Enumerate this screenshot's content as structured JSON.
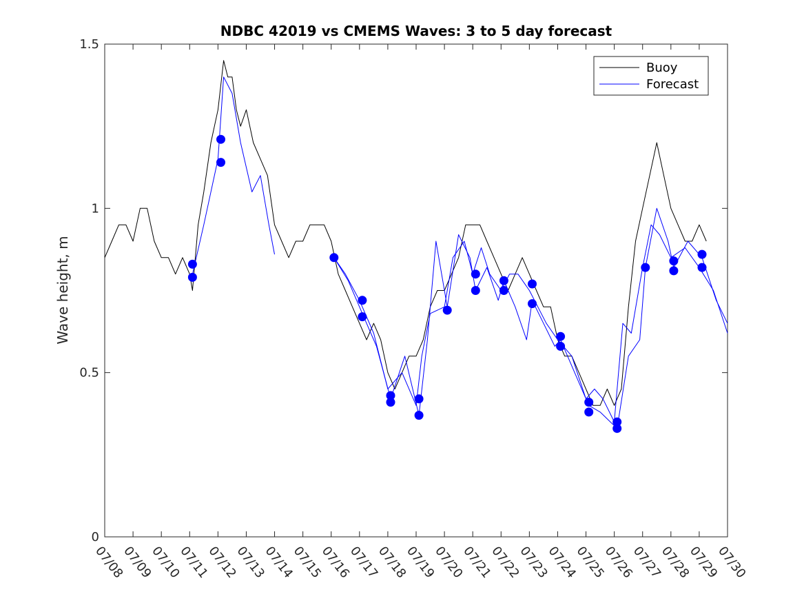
{
  "chart_data": {
    "type": "line",
    "title": "NDBC 42019 vs CMEMS Waves: 3 to 5 day forecast",
    "ylabel": "Wave height, m",
    "xlabel": "",
    "ylim": [
      0,
      1.5
    ],
    "yticks": [
      0,
      0.5,
      1,
      1.5
    ],
    "ytick_labels": [
      "0",
      "0.5",
      "1",
      "1.5"
    ],
    "xlim_day": [
      8,
      30
    ],
    "xticks_day": [
      8,
      9,
      10,
      11,
      12,
      13,
      14,
      15,
      16,
      17,
      18,
      19,
      20,
      21,
      22,
      23,
      24,
      25,
      26,
      27,
      28,
      29,
      30
    ],
    "xtick_labels": [
      "07/08",
      "07/09",
      "07/10",
      "07/11",
      "07/12",
      "07/13",
      "07/14",
      "07/15",
      "07/16",
      "07/17",
      "07/18",
      "07/19",
      "07/20",
      "07/21",
      "07/22",
      "07/23",
      "07/24",
      "07/25",
      "07/26",
      "07/27",
      "07/28",
      "07/29",
      "07/30"
    ],
    "legend": {
      "placement": "top-right",
      "entries": [
        "Buoy",
        "Forecast"
      ]
    },
    "colors": {
      "buoy": "#000000",
      "forecast": "#0000ff",
      "markers": "#0000ff"
    },
    "grid": false,
    "series": [
      {
        "name": "Buoy",
        "x": [
          8.0,
          8.25,
          8.5,
          8.75,
          9.0,
          9.25,
          9.5,
          9.75,
          10.0,
          10.25,
          10.5,
          10.75,
          11.0,
          11.1,
          11.2,
          11.3,
          11.5,
          11.75,
          12.0,
          12.2,
          12.35,
          12.5,
          12.65,
          12.8,
          13.0,
          13.25,
          13.5,
          13.75,
          14.0,
          14.25,
          14.5,
          14.75,
          15.0,
          15.25,
          15.5,
          15.75,
          16.0,
          16.25,
          16.5,
          16.75,
          17.0,
          17.25,
          17.5,
          17.75,
          18.0,
          18.25,
          18.5,
          18.75,
          19.0,
          19.25,
          19.5,
          19.75,
          20.0,
          20.25,
          20.5,
          20.75,
          21.0,
          21.25,
          21.5,
          21.75,
          22.0,
          22.25,
          22.5,
          22.75,
          23.0,
          23.25,
          23.5,
          23.75,
          24.0,
          24.25,
          24.5,
          24.75,
          25.0,
          25.25,
          25.5,
          25.75,
          26.0,
          26.25,
          26.5,
          26.75,
          27.0,
          27.25,
          27.5,
          27.75,
          28.0,
          28.25,
          28.5,
          28.75,
          29.0,
          29.25
        ],
        "values": [
          0.85,
          0.9,
          0.95,
          0.95,
          0.9,
          1.0,
          1.0,
          0.9,
          0.85,
          0.85,
          0.8,
          0.85,
          0.8,
          0.75,
          0.85,
          0.95,
          1.05,
          1.2,
          1.3,
          1.45,
          1.4,
          1.4,
          1.3,
          1.25,
          1.3,
          1.2,
          1.15,
          1.1,
          0.95,
          0.9,
          0.85,
          0.9,
          0.9,
          0.95,
          0.95,
          0.95,
          0.9,
          0.8,
          0.75,
          0.7,
          0.65,
          0.6,
          0.65,
          0.6,
          0.5,
          0.45,
          0.5,
          0.55,
          0.55,
          0.6,
          0.7,
          0.75,
          0.75,
          0.8,
          0.85,
          0.95,
          0.95,
          0.95,
          0.9,
          0.85,
          0.8,
          0.75,
          0.8,
          0.85,
          0.8,
          0.75,
          0.7,
          0.7,
          0.6,
          0.55,
          0.55,
          0.5,
          0.45,
          0.4,
          0.4,
          0.45,
          0.4,
          0.45,
          0.7,
          0.9,
          1.0,
          1.1,
          1.2,
          1.1,
          1.0,
          0.95,
          0.9,
          0.9,
          0.95,
          0.9
        ]
      },
      {
        "name": "Forecast",
        "x": [
          11.1,
          11.5,
          12.0,
          12.2,
          12.5,
          12.8,
          13.2,
          13.5,
          13.8,
          14.0
        ],
        "values": [
          0.8,
          0.95,
          1.15,
          1.4,
          1.35,
          1.2,
          1.05,
          1.1,
          0.95,
          0.86
        ]
      },
      {
        "name": "",
        "x": [
          16.1,
          16.5,
          17.0,
          17.5,
          18.0,
          18.5,
          19.0,
          19.2,
          19.5,
          20.0,
          20.3,
          20.7,
          21.0,
          21.3,
          21.6,
          22.0,
          22.3,
          22.6,
          23.0,
          23.3,
          23.6,
          24.0,
          24.5,
          25.0,
          25.3,
          25.6,
          26.0,
          26.3,
          26.6,
          27.0,
          27.3,
          27.6,
          28.0,
          28.5,
          29.0,
          29.5,
          30.0
        ],
        "values": [
          0.85,
          0.8,
          0.72,
          0.62,
          0.45,
          0.5,
          0.4,
          0.55,
          0.68,
          0.7,
          0.85,
          0.9,
          0.8,
          0.88,
          0.8,
          0.75,
          0.8,
          0.8,
          0.75,
          0.7,
          0.65,
          0.6,
          0.55,
          0.42,
          0.45,
          0.42,
          0.35,
          0.65,
          0.62,
          0.82,
          0.95,
          0.92,
          0.85,
          0.88,
          0.82,
          0.75,
          0.62
        ]
      },
      {
        "name": "",
        "x": [
          16.1,
          16.6,
          17.1,
          17.6,
          18.1,
          18.6,
          19.1,
          19.4,
          19.7,
          20.1,
          20.5,
          20.9,
          21.1,
          21.5,
          21.9,
          22.1,
          22.5,
          22.9,
          23.1,
          23.5,
          23.9,
          24.1,
          24.6,
          25.1,
          25.5,
          26.1,
          26.5,
          26.9,
          27.1,
          27.5,
          27.9,
          28.1,
          28.6,
          29.1,
          29.6,
          30.0
        ],
        "values": [
          0.85,
          0.78,
          0.68,
          0.58,
          0.42,
          0.55,
          0.37,
          0.6,
          0.9,
          0.7,
          0.92,
          0.85,
          0.75,
          0.82,
          0.72,
          0.78,
          0.7,
          0.6,
          0.72,
          0.65,
          0.58,
          0.6,
          0.5,
          0.4,
          0.38,
          0.33,
          0.55,
          0.6,
          0.82,
          1.0,
          0.9,
          0.82,
          0.9,
          0.85,
          0.72,
          0.65
        ]
      }
    ],
    "markers": {
      "x": [
        11.1,
        11.1,
        12.1,
        12.1,
        16.1,
        17.1,
        17.1,
        18.1,
        18.1,
        19.1,
        19.1,
        20.1,
        21.1,
        21.1,
        22.1,
        22.1,
        23.1,
        23.1,
        24.1,
        24.1,
        25.1,
        25.1,
        26.1,
        26.1,
        27.1,
        28.1,
        28.1,
        29.1,
        29.1
      ],
      "values": [
        0.83,
        0.79,
        1.21,
        1.14,
        0.85,
        0.72,
        0.67,
        0.43,
        0.41,
        0.42,
        0.37,
        0.69,
        0.8,
        0.75,
        0.78,
        0.75,
        0.77,
        0.71,
        0.61,
        0.58,
        0.41,
        0.38,
        0.35,
        0.33,
        0.82,
        0.84,
        0.81,
        0.86,
        0.82
      ]
    }
  }
}
